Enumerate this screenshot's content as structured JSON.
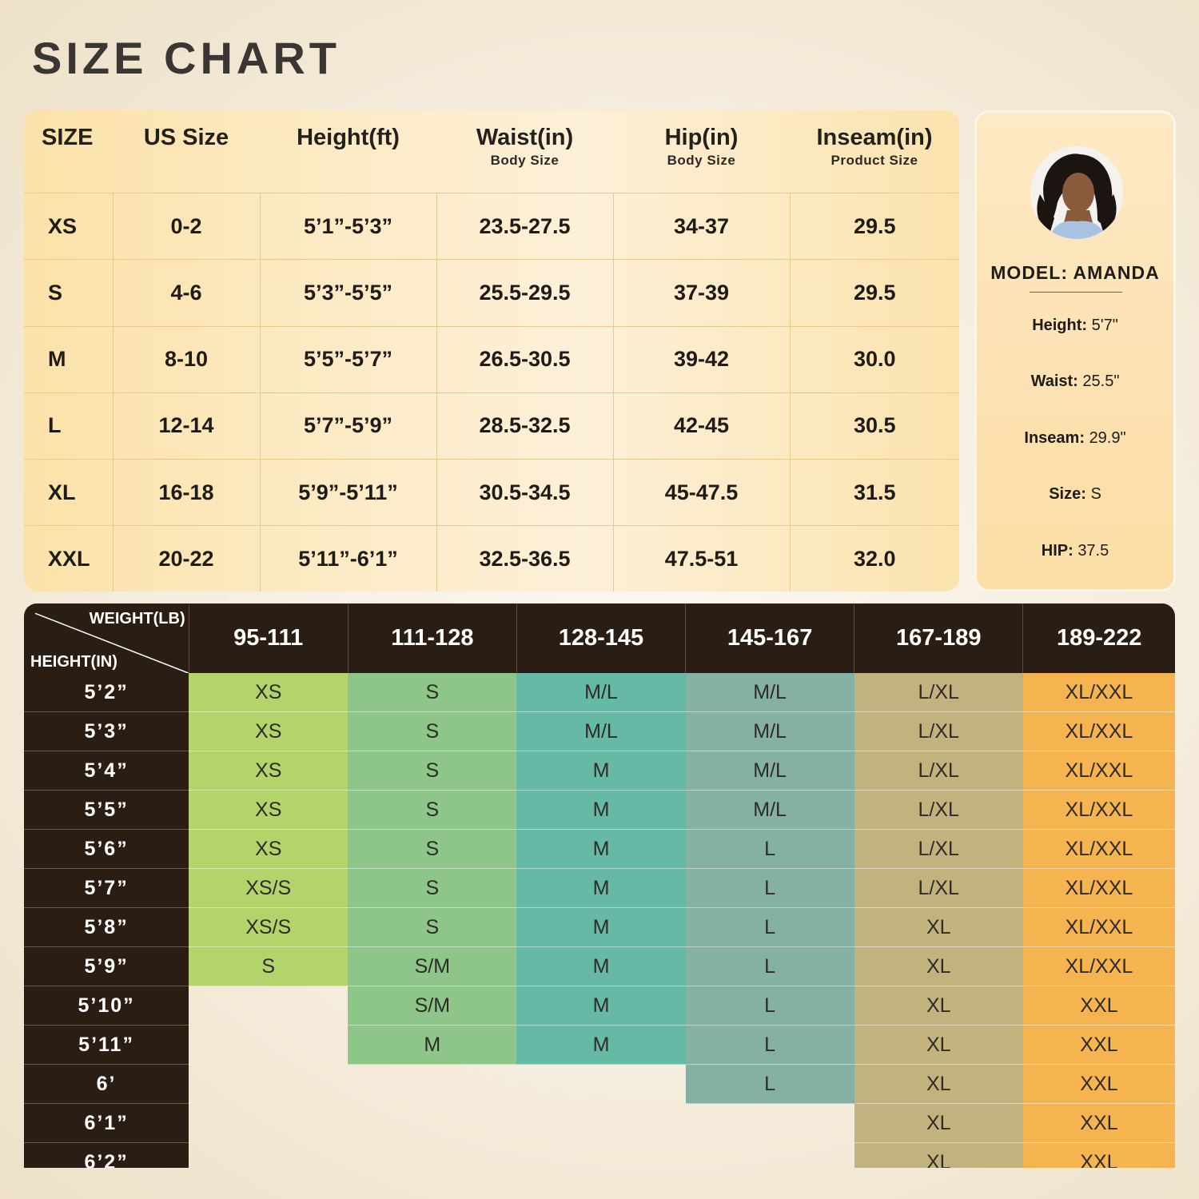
{
  "title": "SIZE CHART",
  "size_table": {
    "headers": [
      {
        "label": "SIZE",
        "sub": ""
      },
      {
        "label": "US Size",
        "sub": ""
      },
      {
        "label": "Height(ft)",
        "sub": ""
      },
      {
        "label": "Waist(in)",
        "sub": "Body Size"
      },
      {
        "label": "Hip(in)",
        "sub": "Body Size"
      },
      {
        "label": "Inseam(in)",
        "sub": "Product Size"
      }
    ],
    "rows": [
      [
        "XS",
        "0-2",
        "5’1”-5’3”",
        "23.5-27.5",
        "34-37",
        "29.5"
      ],
      [
        "S",
        "4-6",
        "5’3”-5’5”",
        "25.5-29.5",
        "37-39",
        "29.5"
      ],
      [
        "M",
        "8-10",
        "5’5”-5’7”",
        "26.5-30.5",
        "39-42",
        "30.0"
      ],
      [
        "L",
        "12-14",
        "5’7”-5’9”",
        "28.5-32.5",
        "42-45",
        "30.5"
      ],
      [
        "XL",
        "16-18",
        "5’9”-5’11”",
        "30.5-34.5",
        "45-47.5",
        "31.5"
      ],
      [
        "XXL",
        "20-22",
        "5’11”-6’1”",
        "32.5-36.5",
        "47.5-51",
        "32.0"
      ]
    ]
  },
  "model": {
    "name": "MODEL: AMANDA",
    "stats": [
      {
        "key": "Height:",
        "value": "5'7\""
      },
      {
        "key": "Waist:",
        "value": "25.5\""
      },
      {
        "key": "Inseam:",
        "value": "29.9\""
      },
      {
        "key": "Size:",
        "value": "S"
      },
      {
        "key": "HIP:",
        "value": "37.5"
      }
    ]
  },
  "hw_table": {
    "corner_weight": "WEIGHT(LB)",
    "corner_height": "HEIGHT(IN)",
    "weights": [
      "95-111",
      "111-128",
      "128-145",
      "145-167",
      "167-189",
      "189-222"
    ],
    "column_colors": [
      "#b2d46a",
      "#8ec689",
      "#66b9a4",
      "#84b1a1",
      "#c2b37e",
      "#f6b450"
    ],
    "rows": [
      {
        "height": "5’2”",
        "sizes": [
          "XS",
          "S",
          "M/L",
          "M/L",
          "L/XL",
          "XL/XXL"
        ]
      },
      {
        "height": "5’3”",
        "sizes": [
          "XS",
          "S",
          "M/L",
          "M/L",
          "L/XL",
          "XL/XXL"
        ]
      },
      {
        "height": "5’4”",
        "sizes": [
          "XS",
          "S",
          "M",
          "M/L",
          "L/XL",
          "XL/XXL"
        ]
      },
      {
        "height": "5’5”",
        "sizes": [
          "XS",
          "S",
          "M",
          "M/L",
          "L/XL",
          "XL/XXL"
        ]
      },
      {
        "height": "5’6”",
        "sizes": [
          "XS",
          "S",
          "M",
          "L",
          "L/XL",
          "XL/XXL"
        ]
      },
      {
        "height": "5’7”",
        "sizes": [
          "XS/S",
          "S",
          "M",
          "L",
          "L/XL",
          "XL/XXL"
        ]
      },
      {
        "height": "5’8”",
        "sizes": [
          "XS/S",
          "S",
          "M",
          "L",
          "XL",
          "XL/XXL"
        ]
      },
      {
        "height": "5’9”",
        "sizes": [
          "S",
          "S/M",
          "M",
          "L",
          "XL",
          "XL/XXL"
        ]
      },
      {
        "height": "5’10”",
        "sizes": [
          "",
          "S/M",
          "M",
          "L",
          "XL",
          "XXL"
        ]
      },
      {
        "height": "5’11”",
        "sizes": [
          "",
          "M",
          "M",
          "L",
          "XL",
          "XXL"
        ]
      },
      {
        "height": "6’",
        "sizes": [
          "",
          "",
          "",
          "L",
          "XL",
          "XXL"
        ]
      },
      {
        "height": "6’1”",
        "sizes": [
          "",
          "",
          "",
          "",
          "XL",
          "XXL"
        ]
      },
      {
        "height": "6’2”",
        "sizes": [
          "",
          "",
          "",
          "",
          "XL",
          "XXL"
        ]
      }
    ]
  }
}
